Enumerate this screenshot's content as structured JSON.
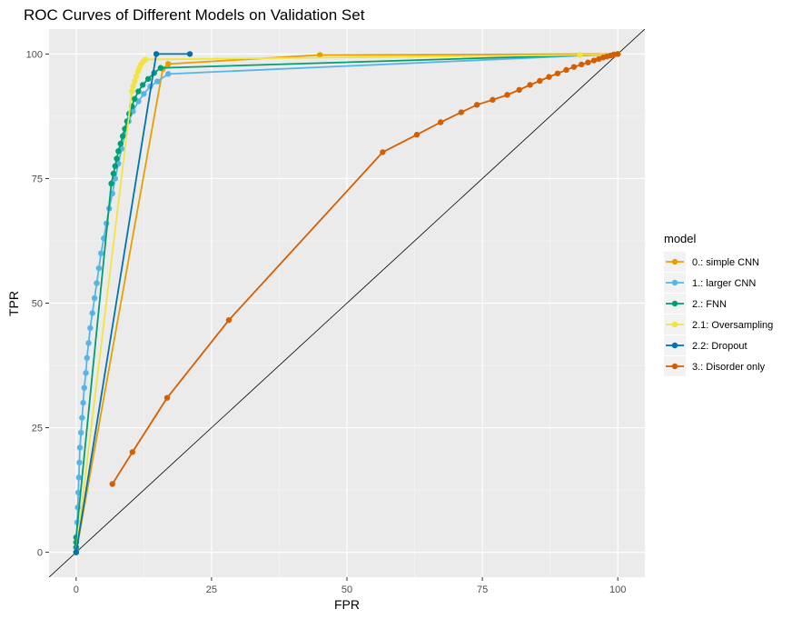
{
  "chart_data": {
    "type": "line",
    "title": "ROC Curves of Different Models on Validation Set",
    "xlabel": "FPR",
    "ylabel": "TPR",
    "xlim": [
      -5,
      105
    ],
    "ylim": [
      -5,
      105
    ],
    "xticks": [
      0,
      25,
      50,
      75,
      100
    ],
    "yticks": [
      0,
      25,
      50,
      75,
      100
    ],
    "grid": true,
    "legend_title": "model",
    "legend_position": "right",
    "series": [
      {
        "name": "0.: simple CNN",
        "color": "#E69F00",
        "points": [
          [
            0,
            0
          ],
          [
            16,
            97
          ],
          [
            17,
            98
          ],
          [
            45,
            99.8
          ],
          [
            100,
            100
          ]
        ]
      },
      {
        "name": "1.: larger CNN",
        "color": "#56B4E9",
        "points": [
          [
            0,
            0
          ],
          [
            0.1,
            3
          ],
          [
            0.2,
            6
          ],
          [
            0.3,
            9
          ],
          [
            0.4,
            12
          ],
          [
            0.5,
            15
          ],
          [
            0.6,
            18
          ],
          [
            0.7,
            21
          ],
          [
            0.9,
            24
          ],
          [
            1.1,
            27
          ],
          [
            1.3,
            30
          ],
          [
            1.5,
            33
          ],
          [
            1.8,
            36
          ],
          [
            2.0,
            39
          ],
          [
            2.3,
            42
          ],
          [
            2.6,
            45
          ],
          [
            3.0,
            48
          ],
          [
            3.4,
            51
          ],
          [
            3.8,
            54
          ],
          [
            4.2,
            57
          ],
          [
            4.6,
            60
          ],
          [
            5.1,
            63
          ],
          [
            5.6,
            66
          ],
          [
            6.1,
            69
          ],
          [
            6.7,
            72
          ],
          [
            7.2,
            75
          ],
          [
            7.8,
            78
          ],
          [
            8.4,
            81
          ],
          [
            9.0,
            84
          ],
          [
            9.7,
            86.5
          ],
          [
            10.5,
            88.5
          ],
          [
            11.5,
            90.5
          ],
          [
            12.5,
            92
          ],
          [
            13.7,
            93.5
          ],
          [
            15.0,
            94.5
          ],
          [
            17,
            96
          ],
          [
            100,
            100
          ]
        ]
      },
      {
        "name": "2.: FNN",
        "color": "#009E73",
        "points": [
          [
            0,
            0
          ],
          [
            0,
            1
          ],
          [
            0,
            2
          ],
          [
            0,
            3
          ],
          [
            6.5,
            74
          ],
          [
            6.9,
            76
          ],
          [
            7.2,
            77.5
          ],
          [
            7.5,
            79
          ],
          [
            7.8,
            80.5
          ],
          [
            8.2,
            82
          ],
          [
            8.6,
            83.5
          ],
          [
            9.0,
            85
          ],
          [
            9.4,
            86.5
          ],
          [
            9.8,
            88
          ],
          [
            10.3,
            89.5
          ],
          [
            10.8,
            91
          ],
          [
            11.5,
            92.5
          ],
          [
            12.3,
            93.8
          ],
          [
            13.3,
            95
          ],
          [
            14.4,
            96.2
          ],
          [
            15.6,
            97.2
          ],
          [
            100,
            100
          ]
        ]
      },
      {
        "name": "2.1: Oversampling",
        "color": "#F0E442",
        "points": [
          [
            0,
            0
          ],
          [
            10.3,
            92.5
          ],
          [
            10.5,
            93.5
          ],
          [
            10.8,
            94.5
          ],
          [
            11.1,
            95.5
          ],
          [
            11.4,
            96.5
          ],
          [
            11.7,
            97.2
          ],
          [
            12.0,
            97.9
          ],
          [
            12.4,
            98.5
          ],
          [
            12.8,
            98.9
          ],
          [
            93,
            99.8
          ],
          [
            100,
            100
          ]
        ]
      },
      {
        "name": "2.2: Dropout",
        "color": "#0072B2",
        "points": [
          [
            0,
            0
          ],
          [
            14.8,
            100
          ],
          [
            21,
            100
          ]
        ]
      },
      {
        "name": "3.: Disorder only",
        "color": "#D55E00",
        "points": [
          [
            6.7,
            13.7
          ],
          [
            10.4,
            20.1
          ],
          [
            16.8,
            31.0
          ],
          [
            28.2,
            46.6
          ],
          [
            56.6,
            80.3
          ],
          [
            62.9,
            83.8
          ],
          [
            67.3,
            86.3
          ],
          [
            71.1,
            88.3
          ],
          [
            74.0,
            89.8
          ],
          [
            76.9,
            90.8
          ],
          [
            79.6,
            91.8
          ],
          [
            81.8,
            92.8
          ],
          [
            83.8,
            93.8
          ],
          [
            85.6,
            94.6
          ],
          [
            87.3,
            95.4
          ],
          [
            88.9,
            96.1
          ],
          [
            90.5,
            96.8
          ],
          [
            91.9,
            97.4
          ],
          [
            93.3,
            97.9
          ],
          [
            94.5,
            98.3
          ],
          [
            95.6,
            98.7
          ],
          [
            96.5,
            99.0
          ],
          [
            97.3,
            99.3
          ],
          [
            98.0,
            99.5
          ],
          [
            98.7,
            99.7
          ],
          [
            99.3,
            99.9
          ],
          [
            100,
            100
          ]
        ]
      }
    ]
  }
}
